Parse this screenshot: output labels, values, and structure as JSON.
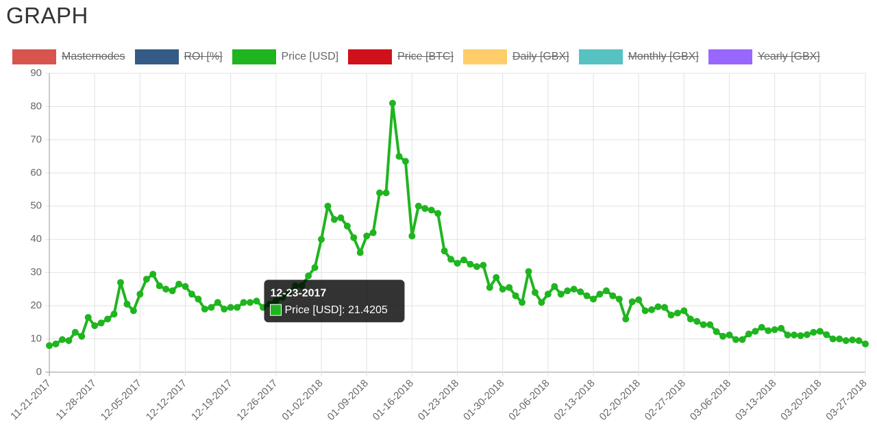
{
  "chart_data": {
    "type": "line",
    "title": "GRAPH",
    "categories": [
      "11-21-2017",
      null,
      null,
      null,
      null,
      null,
      null,
      "11-28-2017",
      null,
      null,
      null,
      null,
      null,
      null,
      "12-05-2017",
      null,
      null,
      null,
      null,
      null,
      null,
      "12-12-2017",
      null,
      null,
      null,
      null,
      null,
      null,
      "12-19-2017",
      null,
      null,
      null,
      null,
      null,
      null,
      "12-26-2017",
      null,
      null,
      null,
      null,
      null,
      null,
      "01-02-2018",
      null,
      null,
      null,
      null,
      null,
      null,
      "01-09-2018",
      null,
      null,
      null,
      null,
      null,
      null,
      "01-16-2018",
      null,
      null,
      null,
      null,
      null,
      null,
      "01-23-2018",
      null,
      null,
      null,
      null,
      null,
      null,
      "01-30-2018",
      null,
      null,
      null,
      null,
      null,
      null,
      "02-06-2018",
      null,
      null,
      null,
      null,
      null,
      null,
      "02-13-2018",
      null,
      null,
      null,
      null,
      null,
      null,
      "02-20-2018",
      null,
      null,
      null,
      null,
      null,
      null,
      "02-27-2018",
      null,
      null,
      null,
      null,
      null,
      null,
      "03-06-2018",
      null,
      null,
      null,
      null,
      null,
      null,
      "03-13-2018",
      null,
      null,
      null,
      null,
      null,
      null,
      "03-20-2018",
      null,
      null,
      null,
      null,
      null,
      null,
      "03-27-2018"
    ],
    "series": [
      {
        "name": "Masternodes",
        "color": "#d9534f",
        "hidden": true
      },
      {
        "name": "ROI [%]",
        "color": "#335b86",
        "hidden": true
      },
      {
        "name": "Price [USD]",
        "color": "#1fb51f",
        "hidden": false,
        "values": [
          8,
          8.5,
          9.8,
          9.5,
          12,
          10.8,
          16.5,
          14,
          14.8,
          16,
          17.5,
          27,
          20.5,
          18.5,
          23.5,
          28,
          29.5,
          26,
          25,
          24.5,
          26.5,
          25.8,
          23.5,
          22,
          19,
          19.5,
          21,
          19,
          19.5,
          19.5,
          21,
          21,
          21.4205,
          19.5,
          20.5,
          21.5,
          22.5,
          24,
          26,
          26,
          29,
          31.5,
          40,
          50,
          46,
          46.5,
          44,
          40.5,
          36,
          41,
          42,
          54,
          54,
          81,
          65,
          63.5,
          41,
          50,
          49.3,
          48.8,
          47.8,
          36.5,
          34,
          32.8,
          33.8,
          32.5,
          31.8,
          32.2,
          25.5,
          28.5,
          25,
          25.5,
          23,
          21,
          30.3,
          24,
          21,
          23.5,
          25.8,
          23.5,
          24.5,
          25,
          24.2,
          23,
          22,
          23.5,
          24.5,
          23,
          22,
          16,
          21.2,
          21.8,
          18.5,
          18.8,
          19.7,
          19.5,
          17.2,
          17.8,
          18.5,
          16,
          15.3,
          14.3,
          14.3,
          12.2,
          10.8,
          11.2,
          9.8,
          9.8,
          11.5,
          12.3,
          13.5,
          12.5,
          12.8,
          13.2,
          11.2,
          11.2,
          11,
          11.3,
          12,
          12.3,
          11.3,
          10,
          10,
          9.5,
          9.7,
          9.5,
          8.5
        ]
      },
      {
        "name": "Price [BTC]",
        "color": "#d0101b",
        "hidden": true
      },
      {
        "name": "Daily [GBX]",
        "color": "#ffcd69",
        "hidden": true
      },
      {
        "name": "Monthly [GBX]",
        "color": "#56c2c2",
        "hidden": true
      },
      {
        "name": "Yearly [GBX]",
        "color": "#9966ff",
        "hidden": true
      }
    ],
    "ylim": [
      0,
      90
    ],
    "yticks": [
      0,
      10,
      20,
      30,
      40,
      50,
      60,
      70,
      80,
      90
    ],
    "grid": true,
    "legend": "top",
    "tooltip": {
      "title": "12-23-2017",
      "series": 2,
      "index": 32
    }
  }
}
